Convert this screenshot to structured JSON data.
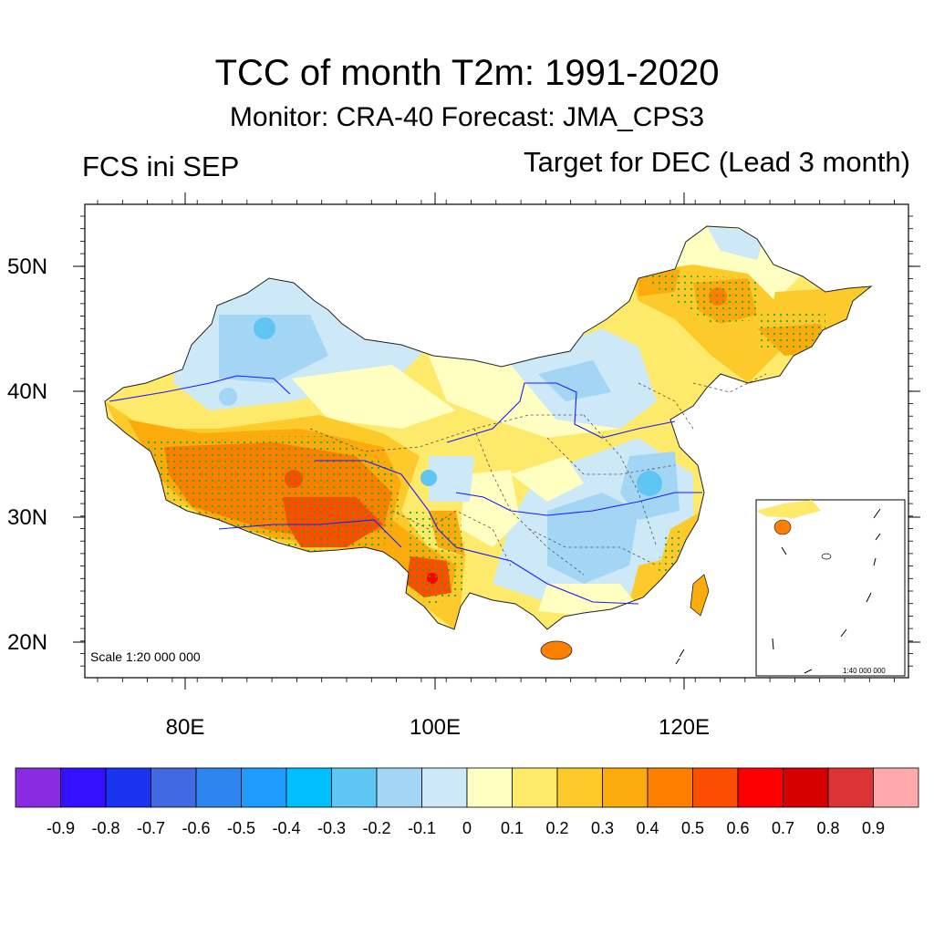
{
  "title": "TCC of month T2m: 1991-2020",
  "subtitle": "Monitor: CRA-40   Forecast: JMA_CPS3",
  "left_label": "FCS ini SEP",
  "right_label": "Target for DEC (Lead 3 month)",
  "scale_main": "Scale 1:20 000 000",
  "scale_inset": "1:40 000 000",
  "lat_ticks": [
    "50N",
    "40N",
    "30N",
    "20N"
  ],
  "lon_ticks": [
    "80E",
    "100E",
    "120E"
  ],
  "colorbar": {
    "colors": [
      "#8a2be2",
      "#3311ff",
      "#1a33f0",
      "#4169e1",
      "#2d86ee",
      "#1e9bff",
      "#00bfff",
      "#5fc5f2",
      "#a3d6f5",
      "#cde8f7",
      "#ffffc2",
      "#fde96a",
      "#fdca2b",
      "#fcab0c",
      "#fc7f00",
      "#fc4e00",
      "#fc0000",
      "#d70000",
      "#dc3434",
      "#ffaaaa"
    ],
    "labels": [
      "-0.9",
      "-0.8",
      "-0.7",
      "-0.6",
      "-0.5",
      "-0.4",
      "-0.3",
      "-0.2",
      "-0.1",
      "0",
      "0.1",
      "0.2",
      "0.3",
      "0.4",
      "0.5",
      "0.6",
      "0.7",
      "0.8",
      "0.9"
    ]
  }
}
